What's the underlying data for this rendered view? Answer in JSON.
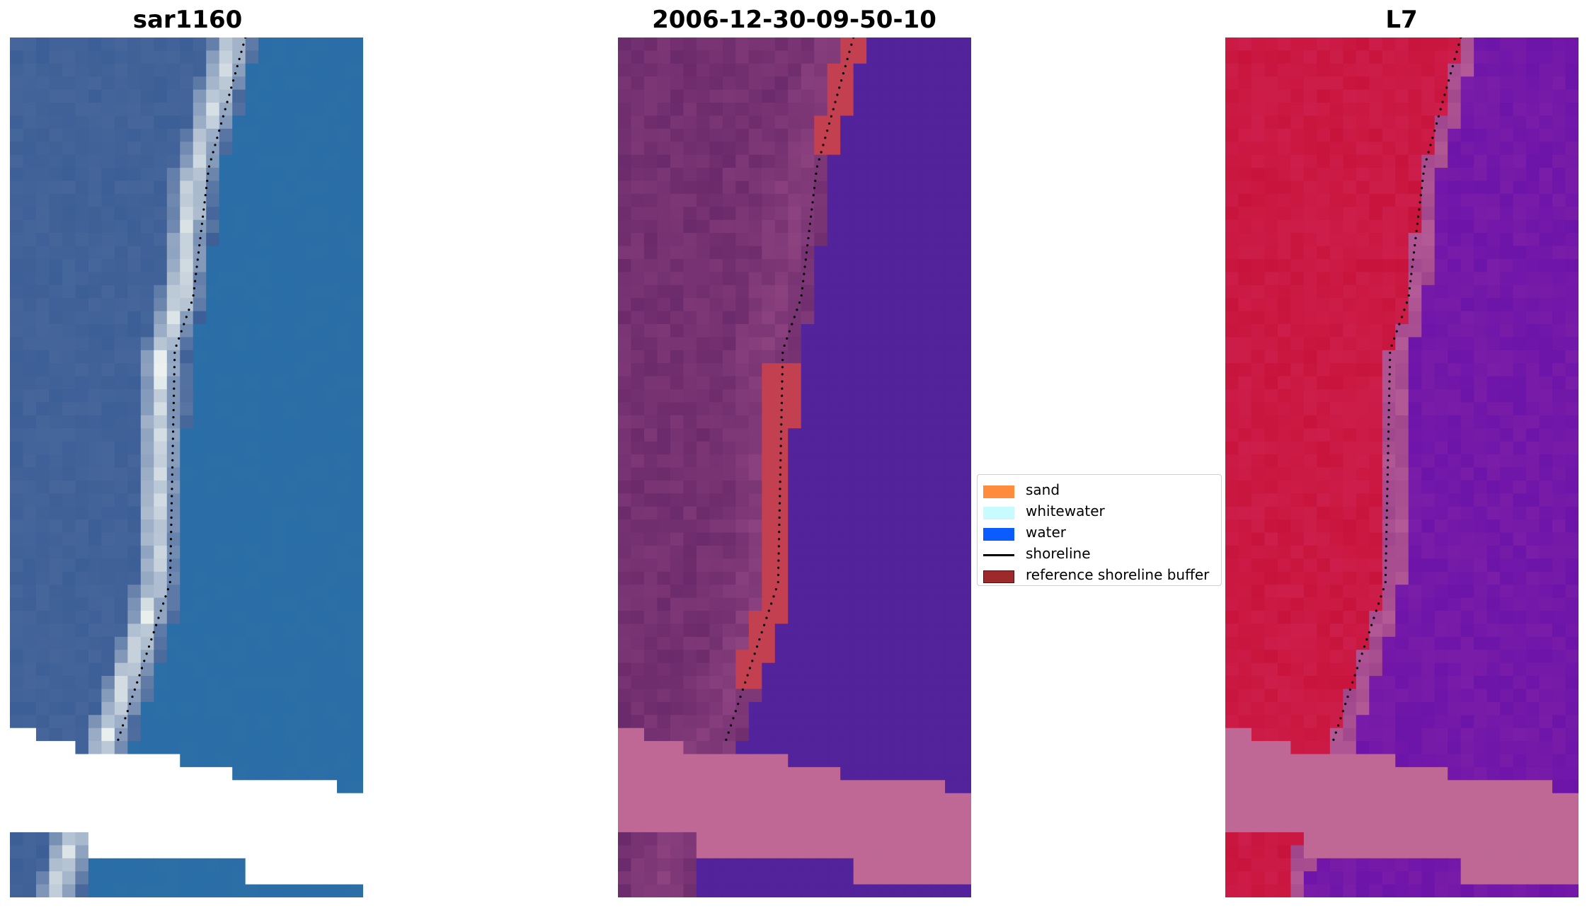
{
  "panels": [
    {
      "title": "sar1160",
      "mode": "rgb"
    },
    {
      "title": "2006-12-30-09-50-10",
      "mode": "class"
    },
    {
      "title": "L7",
      "mode": "mndwi"
    }
  ],
  "legend": {
    "items": [
      {
        "label": "sand",
        "color": "#ff8c3c",
        "kind": "patch"
      },
      {
        "label": "whitewater",
        "color": "#c8fbff",
        "kind": "patch"
      },
      {
        "label": "water",
        "color": "#0a5cff",
        "kind": "patch"
      },
      {
        "label": "shoreline",
        "color": "#000000",
        "kind": "line"
      },
      {
        "label": "reference shoreline buffer",
        "color": "#9c2a2a",
        "kind": "patch"
      }
    ]
  },
  "colors": {
    "sea_rgb": "#2c6ea6",
    "land_rgb": "#3d5f97",
    "whitewater_rgb": "#eef3f0",
    "land_class": "#6b2a6b",
    "water_class": "#52239a",
    "buffer_class": "#c24050",
    "nodata_overlay": "#bf6896",
    "land_index": "#c8143c",
    "water_index": "#7a1da8"
  }
}
